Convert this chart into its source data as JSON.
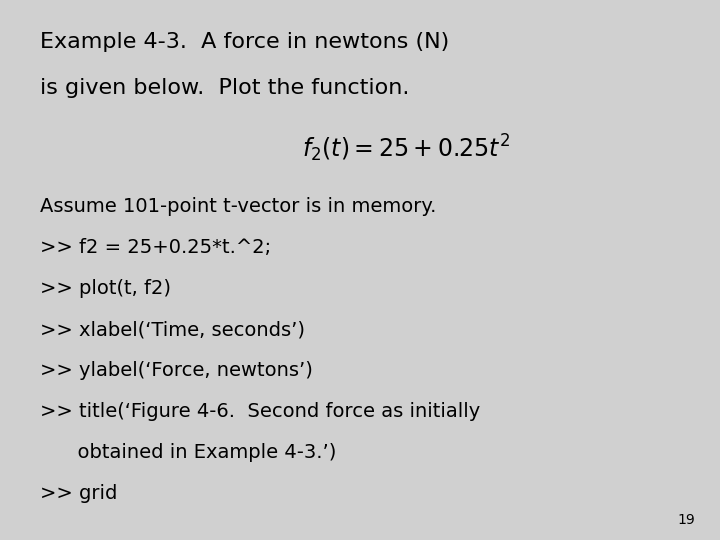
{
  "background_color": "#d0d0d0",
  "title_line1": "Example 4-3.  A force in newtons (N)",
  "title_line2": "is given below.  Plot the function.",
  "formula_text": "$f_2(t) = 25 + 0.25t^2$",
  "body_lines": [
    "Assume 101-point t-vector is in memory.",
    ">> f2 = 25+0.25*t.^2;",
    ">> plot(t, f2)",
    ">> xlabel(‘Time, seconds’)",
    ">> ylabel(‘Force, newtons’)",
    ">> title(‘Figure 4-6.  Second force as initially",
    "      obtained in Example 4-3.’)",
    ">> grid"
  ],
  "page_number": "19",
  "font_color": "#000000",
  "title_fontsize": 16,
  "formula_fontsize": 17,
  "body_fontsize": 14,
  "page_num_fontsize": 10
}
